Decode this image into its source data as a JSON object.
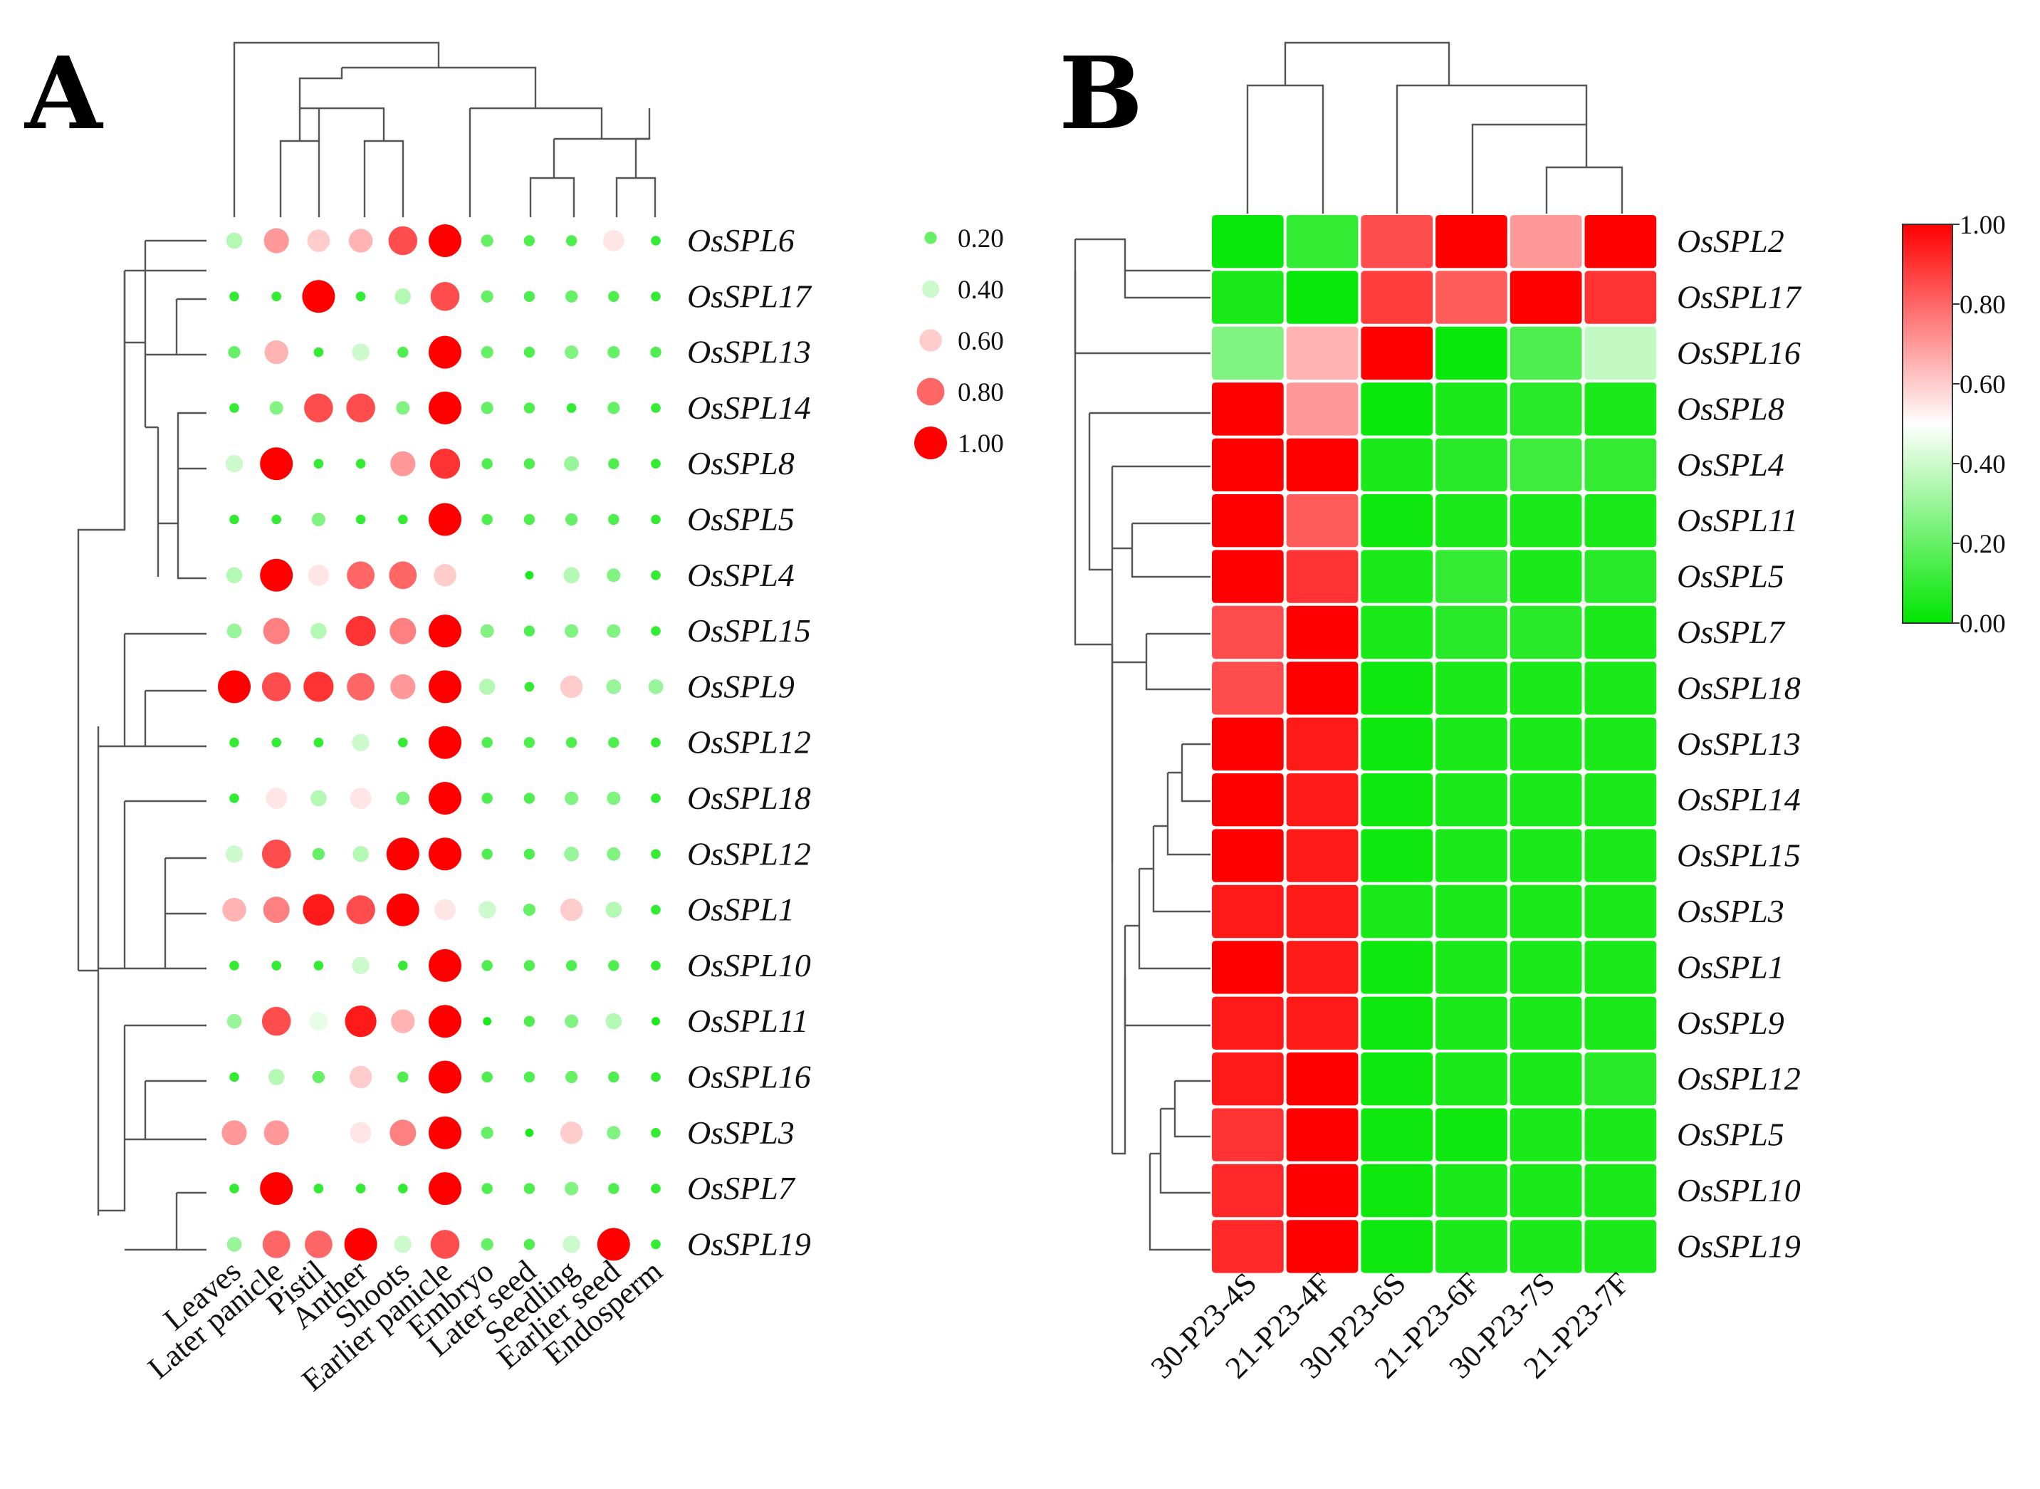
{
  "chart_data": [
    {
      "panel": "A",
      "type": "heatmap",
      "style": "dot",
      "columns": [
        "Leaves",
        "Later panicle",
        "Pistil",
        "Anther",
        "Shoots",
        "Earlier panicle",
        "Embryo",
        "Later seed",
        "Seedling",
        "Earlier seed",
        "Endosperm"
      ],
      "rows": [
        "OsSPL6",
        "OsSPL17",
        "OsSPL13",
        "OsSPL14",
        "OsSPL8",
        "OsSPL5",
        "OsSPL4",
        "OsSPL15",
        "OsSPL9",
        "OsSPL12",
        "OsSPL18",
        "OsSPL12",
        "OsSPL1",
        "OsSPL10",
        "OsSPL11",
        "OsSPL16",
        "OsSPL3",
        "OsSPL7",
        "OsSPL19"
      ],
      "values": [
        [
          0.35,
          0.7,
          0.6,
          0.65,
          0.85,
          1.0,
          0.2,
          0.15,
          0.15,
          0.55,
          0.1
        ],
        [
          0.1,
          0.1,
          1.0,
          0.1,
          0.35,
          0.85,
          0.2,
          0.15,
          0.2,
          0.15,
          0.1
        ],
        [
          0.2,
          0.65,
          0.1,
          0.4,
          0.15,
          1.0,
          0.2,
          0.15,
          0.25,
          0.2,
          0.15
        ],
        [
          0.1,
          0.25,
          0.85,
          0.85,
          0.25,
          1.0,
          0.2,
          0.15,
          0.1,
          0.2,
          0.1
        ],
        [
          0.4,
          1.0,
          0.1,
          0.1,
          0.7,
          0.9,
          0.15,
          0.15,
          0.3,
          0.15,
          0.1
        ],
        [
          0.1,
          0.1,
          0.25,
          0.1,
          0.1,
          1.0,
          0.15,
          0.15,
          0.2,
          0.15,
          0.1
        ],
        [
          0.35,
          1.0,
          0.55,
          0.8,
          0.8,
          0.6,
          0.5,
          0.05,
          0.35,
          0.25,
          0.1
        ],
        [
          0.3,
          0.75,
          0.35,
          0.9,
          0.75,
          1.0,
          0.25,
          0.15,
          0.25,
          0.25,
          0.1
        ],
        [
          1.0,
          0.85,
          0.9,
          0.8,
          0.7,
          1.0,
          0.35,
          0.1,
          0.6,
          0.3,
          0.3
        ],
        [
          0.1,
          0.1,
          0.1,
          0.4,
          0.1,
          1.0,
          0.15,
          0.15,
          0.15,
          0.15,
          0.1
        ],
        [
          0.1,
          0.55,
          0.35,
          0.55,
          0.25,
          1.0,
          0.15,
          0.15,
          0.25,
          0.25,
          0.1
        ],
        [
          0.4,
          0.85,
          0.2,
          0.35,
          1.0,
          1.0,
          0.15,
          0.15,
          0.3,
          0.25,
          0.1
        ],
        [
          0.65,
          0.75,
          0.95,
          0.85,
          1.0,
          0.55,
          0.4,
          0.2,
          0.6,
          0.35,
          0.1
        ],
        [
          0.1,
          0.1,
          0.1,
          0.4,
          0.1,
          1.0,
          0.15,
          0.15,
          0.15,
          0.15,
          0.1
        ],
        [
          0.3,
          0.85,
          0.45,
          0.95,
          0.65,
          1.0,
          0.05,
          0.15,
          0.25,
          0.35,
          0.05
        ],
        [
          0.1,
          0.35,
          0.2,
          0.6,
          0.15,
          1.0,
          0.15,
          0.15,
          0.2,
          0.15,
          0.1
        ],
        [
          0.7,
          0.7,
          0.5,
          0.55,
          0.75,
          1.0,
          0.2,
          0.05,
          0.6,
          0.25,
          0.1
        ],
        [
          0.1,
          1.0,
          0.1,
          0.1,
          0.1,
          1.0,
          0.15,
          0.15,
          0.25,
          0.15,
          0.1
        ],
        [
          0.3,
          0.8,
          0.8,
          1.0,
          0.4,
          0.85,
          0.2,
          0.15,
          0.4,
          1.0,
          0.1
        ]
      ],
      "legend": {
        "levels": [
          0.2,
          0.4,
          0.6,
          0.8,
          1.0
        ],
        "labels": [
          "0.20",
          "0.40",
          "0.60",
          "0.80",
          "1.00"
        ]
      }
    },
    {
      "panel": "B",
      "type": "heatmap",
      "columns": [
        "30-P23-4S",
        "21-P23-4F",
        "30-P23-6S",
        "21-P23-6F",
        "30-P23-7S",
        "21-P23-7F"
      ],
      "rows": [
        "OsSPL2",
        "OsSPL17",
        "OsSPL16",
        "OsSPL8",
        "OsSPL4",
        "OsSPL11",
        "OsSPL5",
        "OsSPL7",
        "OsSPL18",
        "OsSPL13",
        "OsSPL14",
        "OsSPL15",
        "OsSPL3",
        "OsSPL1",
        "OsSPL9",
        "OsSPL12",
        "OsSPL5",
        "OsSPL10",
        "OsSPL19"
      ],
      "values": [
        [
          0.02,
          0.1,
          0.85,
          1.0,
          0.7,
          1.0
        ],
        [
          0.05,
          0.02,
          0.88,
          0.82,
          1.0,
          0.9
        ],
        [
          0.25,
          0.65,
          1.0,
          0.02,
          0.15,
          0.38
        ],
        [
          1.0,
          0.7,
          0.02,
          0.05,
          0.08,
          0.05
        ],
        [
          1.0,
          1.0,
          0.05,
          0.08,
          0.12,
          0.1
        ],
        [
          1.0,
          0.82,
          0.03,
          0.05,
          0.05,
          0.05
        ],
        [
          1.0,
          0.9,
          0.05,
          0.1,
          0.05,
          0.08
        ],
        [
          0.85,
          1.0,
          0.05,
          0.08,
          0.08,
          0.05
        ],
        [
          0.85,
          1.0,
          0.03,
          0.05,
          0.05,
          0.05
        ],
        [
          1.0,
          0.95,
          0.03,
          0.05,
          0.05,
          0.05
        ],
        [
          1.0,
          0.95,
          0.03,
          0.05,
          0.05,
          0.05
        ],
        [
          1.0,
          0.95,
          0.03,
          0.05,
          0.05,
          0.05
        ],
        [
          0.95,
          0.95,
          0.05,
          0.05,
          0.05,
          0.05
        ],
        [
          1.0,
          0.95,
          0.03,
          0.05,
          0.05,
          0.05
        ],
        [
          0.95,
          0.95,
          0.03,
          0.05,
          0.05,
          0.05
        ],
        [
          0.95,
          1.0,
          0.03,
          0.05,
          0.05,
          0.08
        ],
        [
          0.9,
          1.0,
          0.03,
          0.03,
          0.05,
          0.05
        ],
        [
          0.92,
          1.0,
          0.03,
          0.05,
          0.05,
          0.05
        ],
        [
          0.92,
          1.0,
          0.03,
          0.05,
          0.05,
          0.05
        ]
      ],
      "colorbar": {
        "ticks": [
          "1.00",
          "0.80",
          "0.60",
          "0.40",
          "0.20",
          "0.00"
        ],
        "range": [
          0,
          1
        ],
        "low_color": "#00e600",
        "mid_color": "#ffffff",
        "high_color": "#ff0000"
      }
    }
  ]
}
